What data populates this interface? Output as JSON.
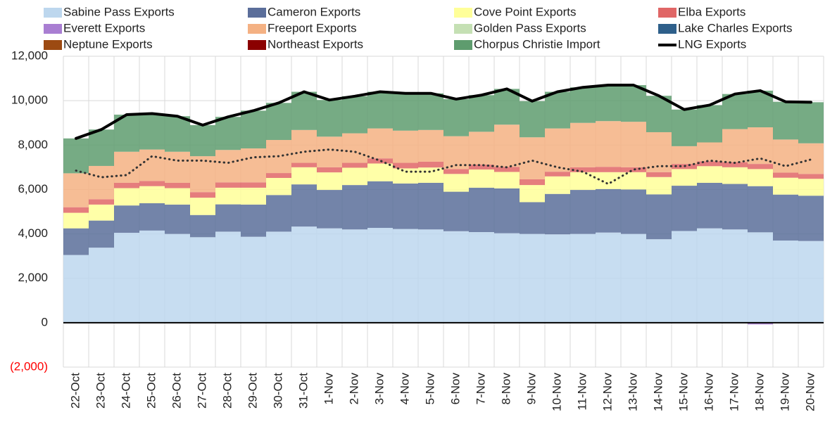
{
  "chart_data": {
    "type": "bar",
    "stacked": true,
    "grid": true,
    "legend": "top",
    "negative_tick_color": "#ff0000",
    "categories": [
      "22-Oct",
      "23-Oct",
      "24-Oct",
      "25-Oct",
      "26-Oct",
      "27-Oct",
      "28-Oct",
      "29-Oct",
      "30-Oct",
      "31-Oct",
      "1-Nov",
      "2-Nov",
      "3-Nov",
      "4-Nov",
      "5-Nov",
      "6-Nov",
      "7-Nov",
      "8-Nov",
      "9-Nov",
      "10-Nov",
      "11-Nov",
      "12-Nov",
      "13-Nov",
      "14-Nov",
      "15-Nov",
      "16-Nov",
      "17-Nov",
      "18-Nov",
      "19-Nov",
      "20-Nov"
    ],
    "ylim": [
      -2000,
      12000
    ],
    "yticks": [
      {
        "value": -2000,
        "label": "(2,000)"
      },
      0,
      {
        "value": 2000,
        "label": "2,000"
      },
      {
        "value": 4000,
        "label": "4,000"
      },
      {
        "value": 6000,
        "label": "6,000"
      },
      {
        "value": 8000,
        "label": "8,000"
      },
      {
        "value": 10000,
        "label": "10,000"
      },
      {
        "value": 12000,
        "label": "12,000"
      }
    ],
    "series": [
      {
        "name": "Sabine Pass Exports",
        "color": "#bdd7ee",
        "values": [
          3050,
          3380,
          4050,
          4150,
          4000,
          3850,
          4100,
          3870,
          4100,
          4330,
          4250,
          4200,
          4270,
          4220,
          4200,
          4120,
          4080,
          4030,
          4000,
          3980,
          4000,
          4060,
          4000,
          3760,
          4130,
          4250,
          4200,
          4070,
          3700,
          3680
        ]
      },
      {
        "name": "Cameron Exports",
        "color": "#5b6e9a",
        "values": [
          1200,
          1220,
          1230,
          1230,
          1320,
          1000,
          1230,
          1450,
          1650,
          1900,
          1730,
          2000,
          2100,
          2050,
          2100,
          1780,
          2000,
          2020,
          1430,
          1820,
          1980,
          1960,
          2000,
          2020,
          2040,
          2050,
          2050,
          2080,
          2070,
          2040
        ]
      },
      {
        "name": "Cove Point Exports",
        "color": "#ffff99",
        "values": [
          700,
          720,
          780,
          770,
          740,
          780,
          750,
          760,
          770,
          770,
          790,
          780,
          800,
          680,
          690,
          800,
          820,
          740,
          770,
          790,
          800,
          760,
          780,
          780,
          750,
          750,
          750,
          770,
          760,
          760
        ]
      },
      {
        "name": "Elba Exports",
        "color": "#e06666",
        "values": [
          250,
          240,
          240,
          230,
          240,
          250,
          240,
          240,
          220,
          200,
          230,
          220,
          230,
          250,
          260,
          220,
          220,
          230,
          260,
          210,
          220,
          240,
          220,
          220,
          230,
          220,
          230,
          230,
          230,
          220
        ]
      },
      {
        "name": "Everett Exports",
        "color": "#a97ed2",
        "values": [
          0,
          0,
          0,
          0,
          0,
          0,
          0,
          0,
          0,
          0,
          0,
          0,
          0,
          0,
          0,
          0,
          0,
          0,
          0,
          0,
          0,
          0,
          0,
          0,
          0,
          0,
          0,
          -80,
          0,
          0
        ]
      },
      {
        "name": "Freeport Exports",
        "color": "#f4b183",
        "values": [
          1530,
          1500,
          1400,
          1420,
          1400,
          1620,
          1460,
          1530,
          1490,
          1480,
          1380,
          1330,
          1350,
          1450,
          1430,
          1480,
          1480,
          1900,
          1890,
          1950,
          2000,
          2060,
          2050,
          1800,
          800,
          850,
          1490,
          1650,
          1490,
          1380
        ]
      },
      {
        "name": "Golden Pass Exports",
        "color": "#c5e0b4",
        "values": [
          0,
          0,
          0,
          0,
          0,
          0,
          0,
          0,
          0,
          0,
          0,
          0,
          0,
          0,
          0,
          0,
          0,
          0,
          0,
          0,
          0,
          0,
          0,
          0,
          0,
          0,
          0,
          0,
          0,
          0
        ]
      },
      {
        "name": "Lake Charles Exports",
        "color": "#2e5f8a",
        "values": [
          0,
          0,
          0,
          0,
          0,
          0,
          0,
          0,
          0,
          0,
          0,
          0,
          0,
          0,
          0,
          0,
          0,
          0,
          0,
          0,
          0,
          0,
          0,
          0,
          0,
          0,
          0,
          0,
          0,
          0
        ]
      },
      {
        "name": "Neptune Exports",
        "color": "#9c4a12",
        "values": [
          0,
          0,
          0,
          0,
          0,
          0,
          0,
          0,
          0,
          0,
          0,
          0,
          0,
          0,
          0,
          0,
          0,
          0,
          0,
          0,
          0,
          0,
          0,
          0,
          0,
          0,
          0,
          0,
          0,
          0
        ]
      },
      {
        "name": "Northeast Exports",
        "color": "#8b0000",
        "values": [
          0,
          0,
          0,
          0,
          0,
          0,
          0,
          0,
          0,
          0,
          0,
          0,
          0,
          0,
          0,
          0,
          0,
          0,
          0,
          0,
          0,
          0,
          0,
          0,
          0,
          0,
          0,
          0,
          0,
          0
        ]
      },
      {
        "name": "Chorpus Christie Import",
        "color": "#5e9c6e",
        "values": [
          1570,
          1640,
          1670,
          1620,
          1600,
          1400,
          1490,
          1700,
          1670,
          1720,
          1650,
          1670,
          1650,
          1680,
          1650,
          1670,
          1650,
          1610,
          1630,
          1650,
          1600,
          1620,
          1650,
          1640,
          1650,
          1680,
          1580,
          1650,
          1700,
          1850
        ]
      },
      {
        "name": "LNG Exports",
        "type": "line",
        "color": "#000000",
        "values": [
          8300,
          8700,
          9370,
          9420,
          9300,
          8900,
          9270,
          9550,
          9900,
          10400,
          10030,
          10200,
          10400,
          10330,
          10330,
          10070,
          10250,
          10530,
          9980,
          10400,
          10600,
          10700,
          10700,
          10220,
          9600,
          9800,
          10300,
          10450,
          9950,
          9930
        ]
      },
      {
        "type": "line",
        "dash": "dotted",
        "color": "#333333",
        "values": [
          6850,
          6550,
          6650,
          7500,
          7300,
          7300,
          7200,
          7450,
          7500,
          7700,
          7800,
          7700,
          7300,
          6800,
          6800,
          7100,
          7100,
          7000,
          7300,
          7000,
          6800,
          6250,
          6900,
          7050,
          7050,
          7300,
          7200,
          7400,
          7050,
          7350
        ]
      }
    ]
  }
}
